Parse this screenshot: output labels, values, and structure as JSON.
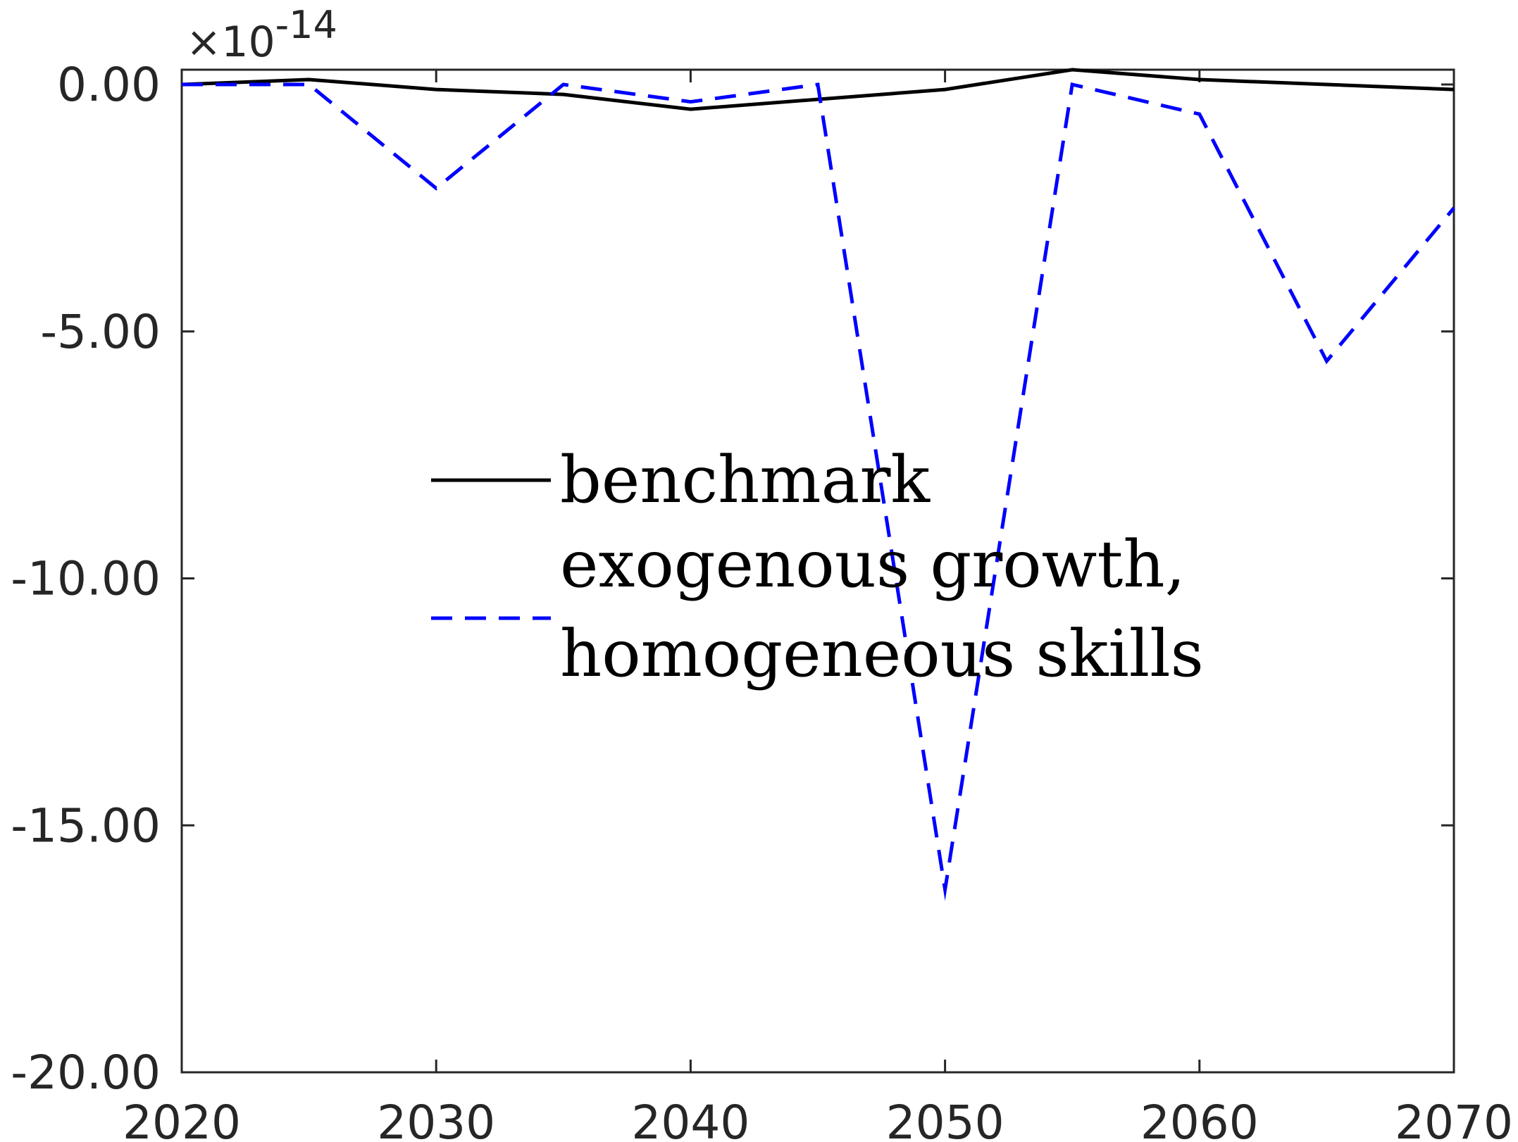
{
  "chart_data": {
    "type": "line",
    "title": "",
    "xlabel": "",
    "ylabel": "",
    "xlim": [
      2020,
      2070
    ],
    "ylim": [
      -20,
      0.3
    ],
    "y_exponent_label": {
      "base": "10",
      "exponent": "-14"
    },
    "x_ticks": [
      2020,
      2030,
      2040,
      2050,
      2060,
      2070
    ],
    "x_tick_labels": [
      "2020",
      "2030",
      "2040",
      "2050",
      "2060",
      "2070"
    ],
    "y_ticks": [
      0,
      -5,
      -10,
      -15,
      -20
    ],
    "y_tick_labels": [
      "0.00",
      "-5.00",
      "-10.00",
      "-15.00",
      "-20.00"
    ],
    "grid": false,
    "legend_position": "center",
    "series": [
      {
        "name": "benchmark",
        "label_lines": [
          "benchmark"
        ],
        "color": "#000000",
        "style": "solid",
        "x": [
          2020,
          2025,
          2030,
          2035,
          2040,
          2045,
          2050,
          2055,
          2060,
          2065,
          2070
        ],
        "y": [
          0.0,
          0.1,
          -0.1,
          -0.2,
          -0.5,
          -0.3,
          -0.1,
          0.3,
          0.1,
          0.0,
          -0.1
        ]
      },
      {
        "name": "exogenous growth, homogeneous skills",
        "label_lines": [
          "exogenous growth,",
          "homogeneous skills"
        ],
        "color": "#0000ff",
        "style": "dashed",
        "x": [
          2020,
          2025,
          2030,
          2035,
          2040,
          2045,
          2050,
          2055,
          2060,
          2065,
          2070
        ],
        "y": [
          0.0,
          0.0,
          -2.1,
          0.0,
          -0.35,
          0.0,
          -16.3,
          0.0,
          -0.6,
          -5.6,
          -2.5
        ]
      }
    ]
  }
}
